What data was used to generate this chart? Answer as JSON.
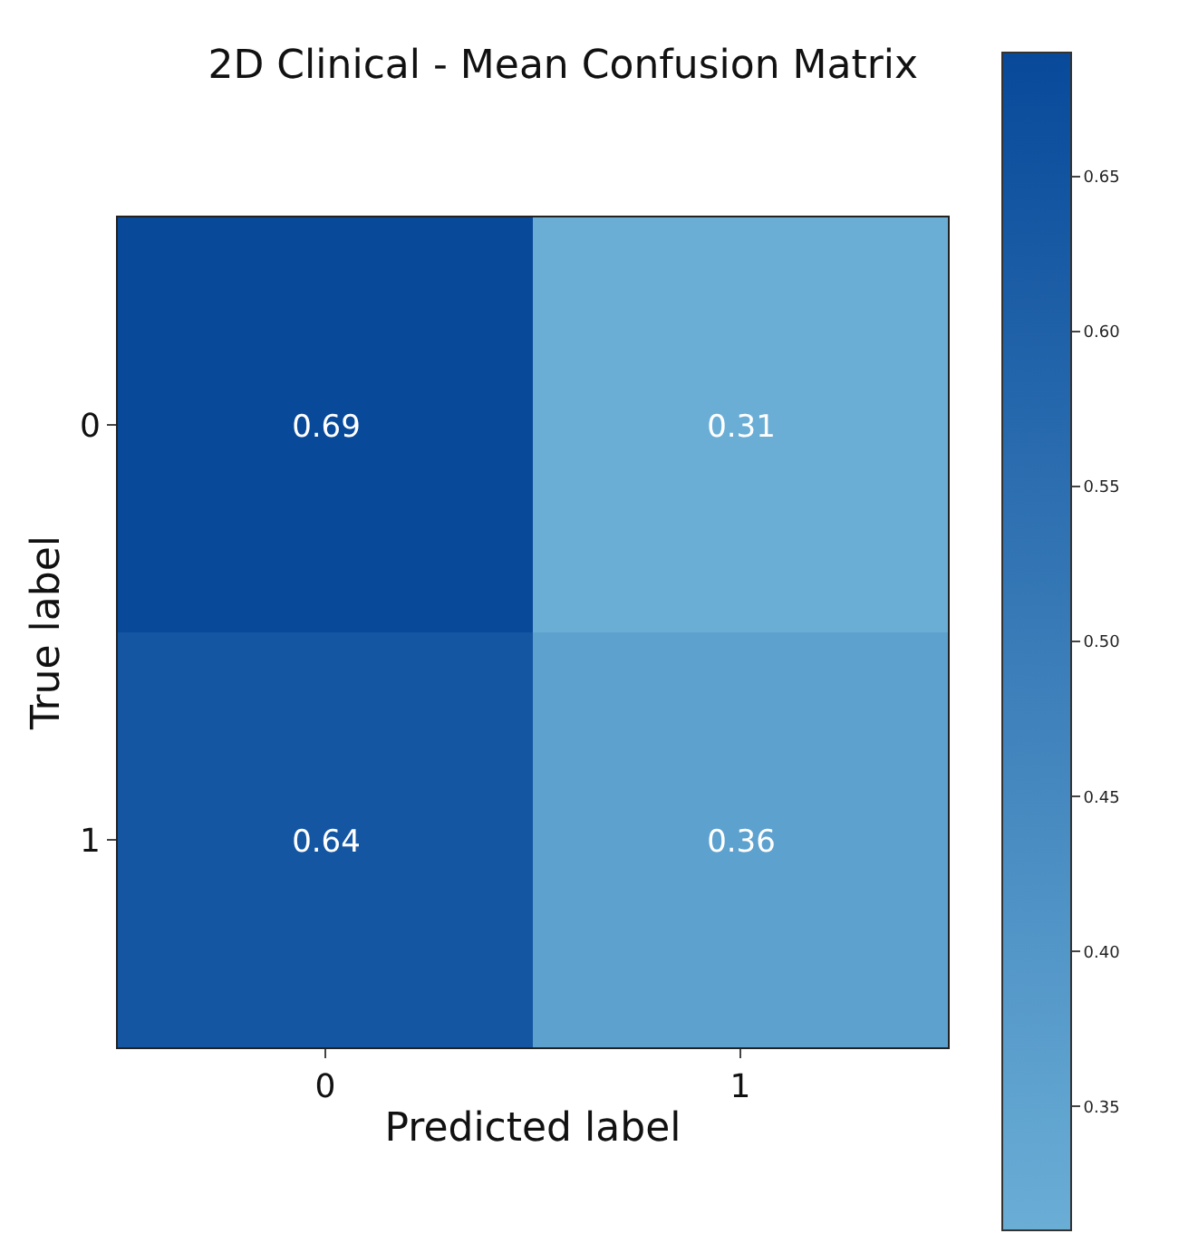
{
  "chart_data": {
    "type": "heatmap",
    "title": "2D Clinical - Mean Confusion Matrix",
    "xlabel": "Predicted label",
    "ylabel": "True label",
    "categories": [
      "0",
      "1"
    ],
    "y_categories": [
      "0",
      "1"
    ],
    "cells": [
      [
        0.69,
        0.31
      ],
      [
        0.64,
        0.36
      ]
    ],
    "data_labels": true,
    "clim": [
      0.31,
      0.69
    ],
    "cticks": [
      {
        "value": 0.35,
        "label": "0.35"
      },
      {
        "value": 0.4,
        "label": "0.40"
      },
      {
        "value": 0.45,
        "label": "0.45"
      },
      {
        "value": 0.5,
        "label": "0.50"
      },
      {
        "value": 0.55,
        "label": "0.55"
      },
      {
        "value": 0.6,
        "label": "0.60"
      },
      {
        "value": 0.65,
        "label": "0.65"
      }
    ]
  }
}
